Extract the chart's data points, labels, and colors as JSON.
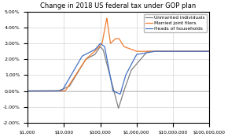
{
  "title": "Change in 2018 US federal tax under GOP plan",
  "ylim": [
    -0.02,
    0.0501
  ],
  "yticks": [
    -0.02,
    -0.01,
    0.0,
    0.01,
    0.02,
    0.03,
    0.04,
    0.05
  ],
  "legend_labels": [
    "Unmarried individuals",
    "Married joint filers",
    "Heads of households"
  ],
  "line_colors": [
    "#4472C4",
    "#ED7D31",
    "#808080"
  ],
  "background_color": "#FFFFFF",
  "grid_color": "#D3D3D3",
  "xtick_labels": [
    "$1,000",
    "$10,000",
    "$100,000",
    "$1,000,000",
    "$10,000,000",
    "$100,000,000"
  ],
  "xtick_vals": [
    1000,
    10000,
    100000,
    1000000,
    10000000,
    100000000
  ]
}
